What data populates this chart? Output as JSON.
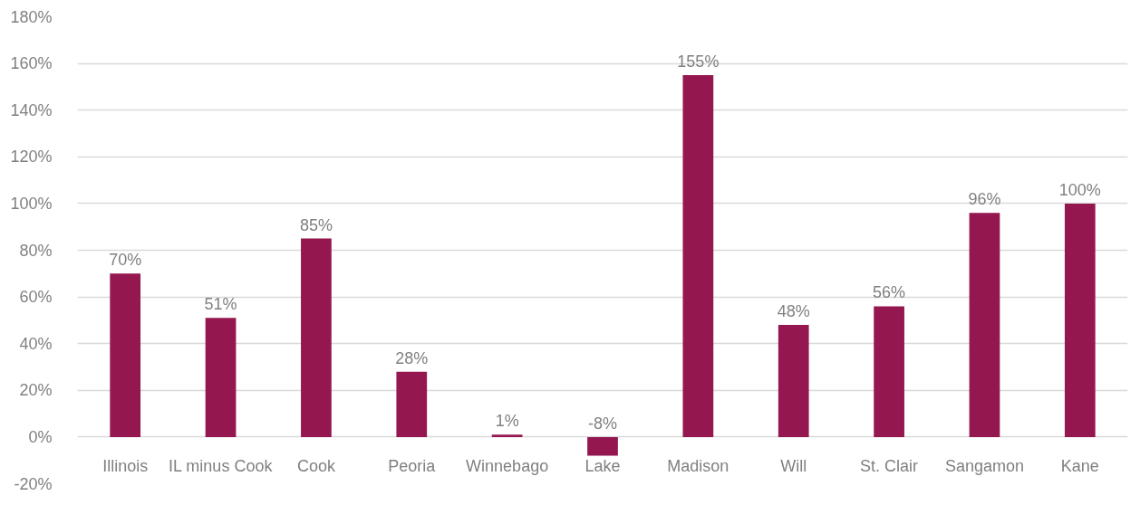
{
  "chart_data": {
    "type": "bar",
    "categories": [
      "Illinois",
      "IL minus Cook",
      "Cook",
      "Peoria",
      "Winnebago",
      "Lake",
      "Madison",
      "Will",
      "St. Clair",
      "Sangamon",
      "Kane"
    ],
    "values": [
      70,
      51,
      85,
      28,
      1,
      -8,
      155,
      48,
      56,
      96,
      100
    ],
    "value_labels": [
      "70%",
      "51%",
      "85%",
      "28%",
      "1%",
      "-8%",
      "155%",
      "48%",
      "56%",
      "96%",
      "100%"
    ],
    "color": "#95174f",
    "ylim": [
      -20,
      180
    ],
    "yticks": [
      {
        "value": -20,
        "label": "-20%"
      },
      {
        "value": 0,
        "label": "0%"
      },
      {
        "value": 20,
        "label": "20%"
      },
      {
        "value": 40,
        "label": "40%"
      },
      {
        "value": 60,
        "label": "60%"
      },
      {
        "value": 80,
        "label": "80%"
      },
      {
        "value": 100,
        "label": "100%"
      },
      {
        "value": 120,
        "label": "120%"
      },
      {
        "value": 140,
        "label": "140%"
      },
      {
        "value": 160,
        "label": "160%"
      },
      {
        "value": 180,
        "label": "180%"
      }
    ],
    "grid": "y"
  }
}
